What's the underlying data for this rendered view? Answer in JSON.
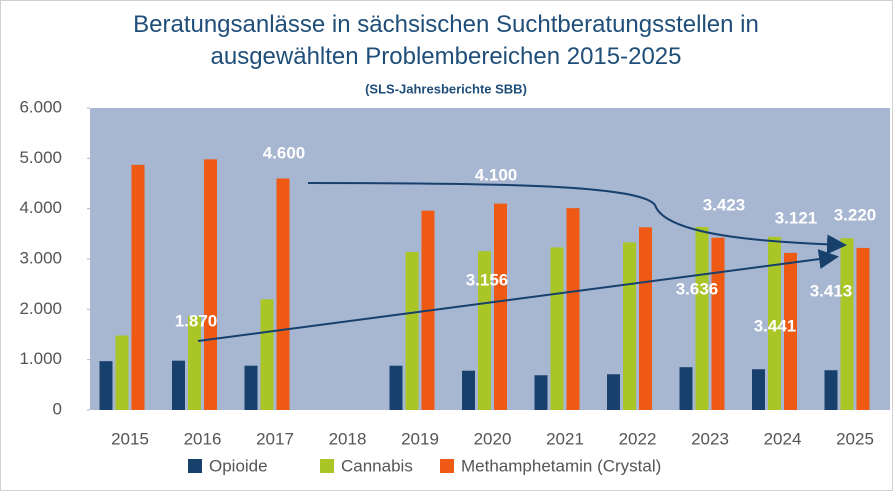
{
  "chart_data": {
    "type": "bar",
    "title": "Beratungsanlässe in sächsischen Suchtberatungsstellen in ausgewählten Problembereichen 2015-2025",
    "subtitle": "(SLS-Jahresberichte SBB)",
    "categories": [
      "2015",
      "2016",
      "2017",
      "2018",
      "2019",
      "2020",
      "2021",
      "2022",
      "2023",
      "2024",
      "2025"
    ],
    "series": [
      {
        "name": "Opioide",
        "color": "#17406d",
        "values": [
          970,
          980,
          880,
          null,
          880,
          780,
          690,
          710,
          850,
          810,
          790
        ]
      },
      {
        "name": "Cannabis",
        "color": "#a9c526",
        "values": [
          1480,
          1870,
          2200,
          null,
          3140,
          3156,
          3230,
          3330,
          3636,
          3441,
          3413
        ],
        "value_labels": [
          null,
          "1.870",
          null,
          null,
          null,
          "3.156",
          null,
          null,
          "3.636",
          "3.441",
          "3.413"
        ]
      },
      {
        "name": "Methamphetamin (Crystal)",
        "color": "#ee5a14",
        "values": [
          4870,
          4980,
          4600,
          null,
          3960,
          4100,
          4010,
          3630,
          3423,
          3121,
          3220
        ],
        "value_labels": [
          null,
          null,
          "4.600",
          null,
          null,
          "4.100",
          null,
          null,
          "3.423",
          "3.121",
          "3.220"
        ]
      }
    ],
    "ylim": [
      0,
      6000
    ],
    "yticks": [
      0,
      {
        "value": 1000,
        "label": "1.000"
      },
      {
        "value": 2000,
        "label": "2.000"
      },
      {
        "value": 3000,
        "label": "3.000"
      },
      {
        "value": 4000,
        "label": "4.000"
      },
      {
        "value": 5000,
        "label": "5.000"
      },
      {
        "value": 6000,
        "label": "6.000"
      }
    ],
    "grid": false,
    "legend": "bottom"
  }
}
